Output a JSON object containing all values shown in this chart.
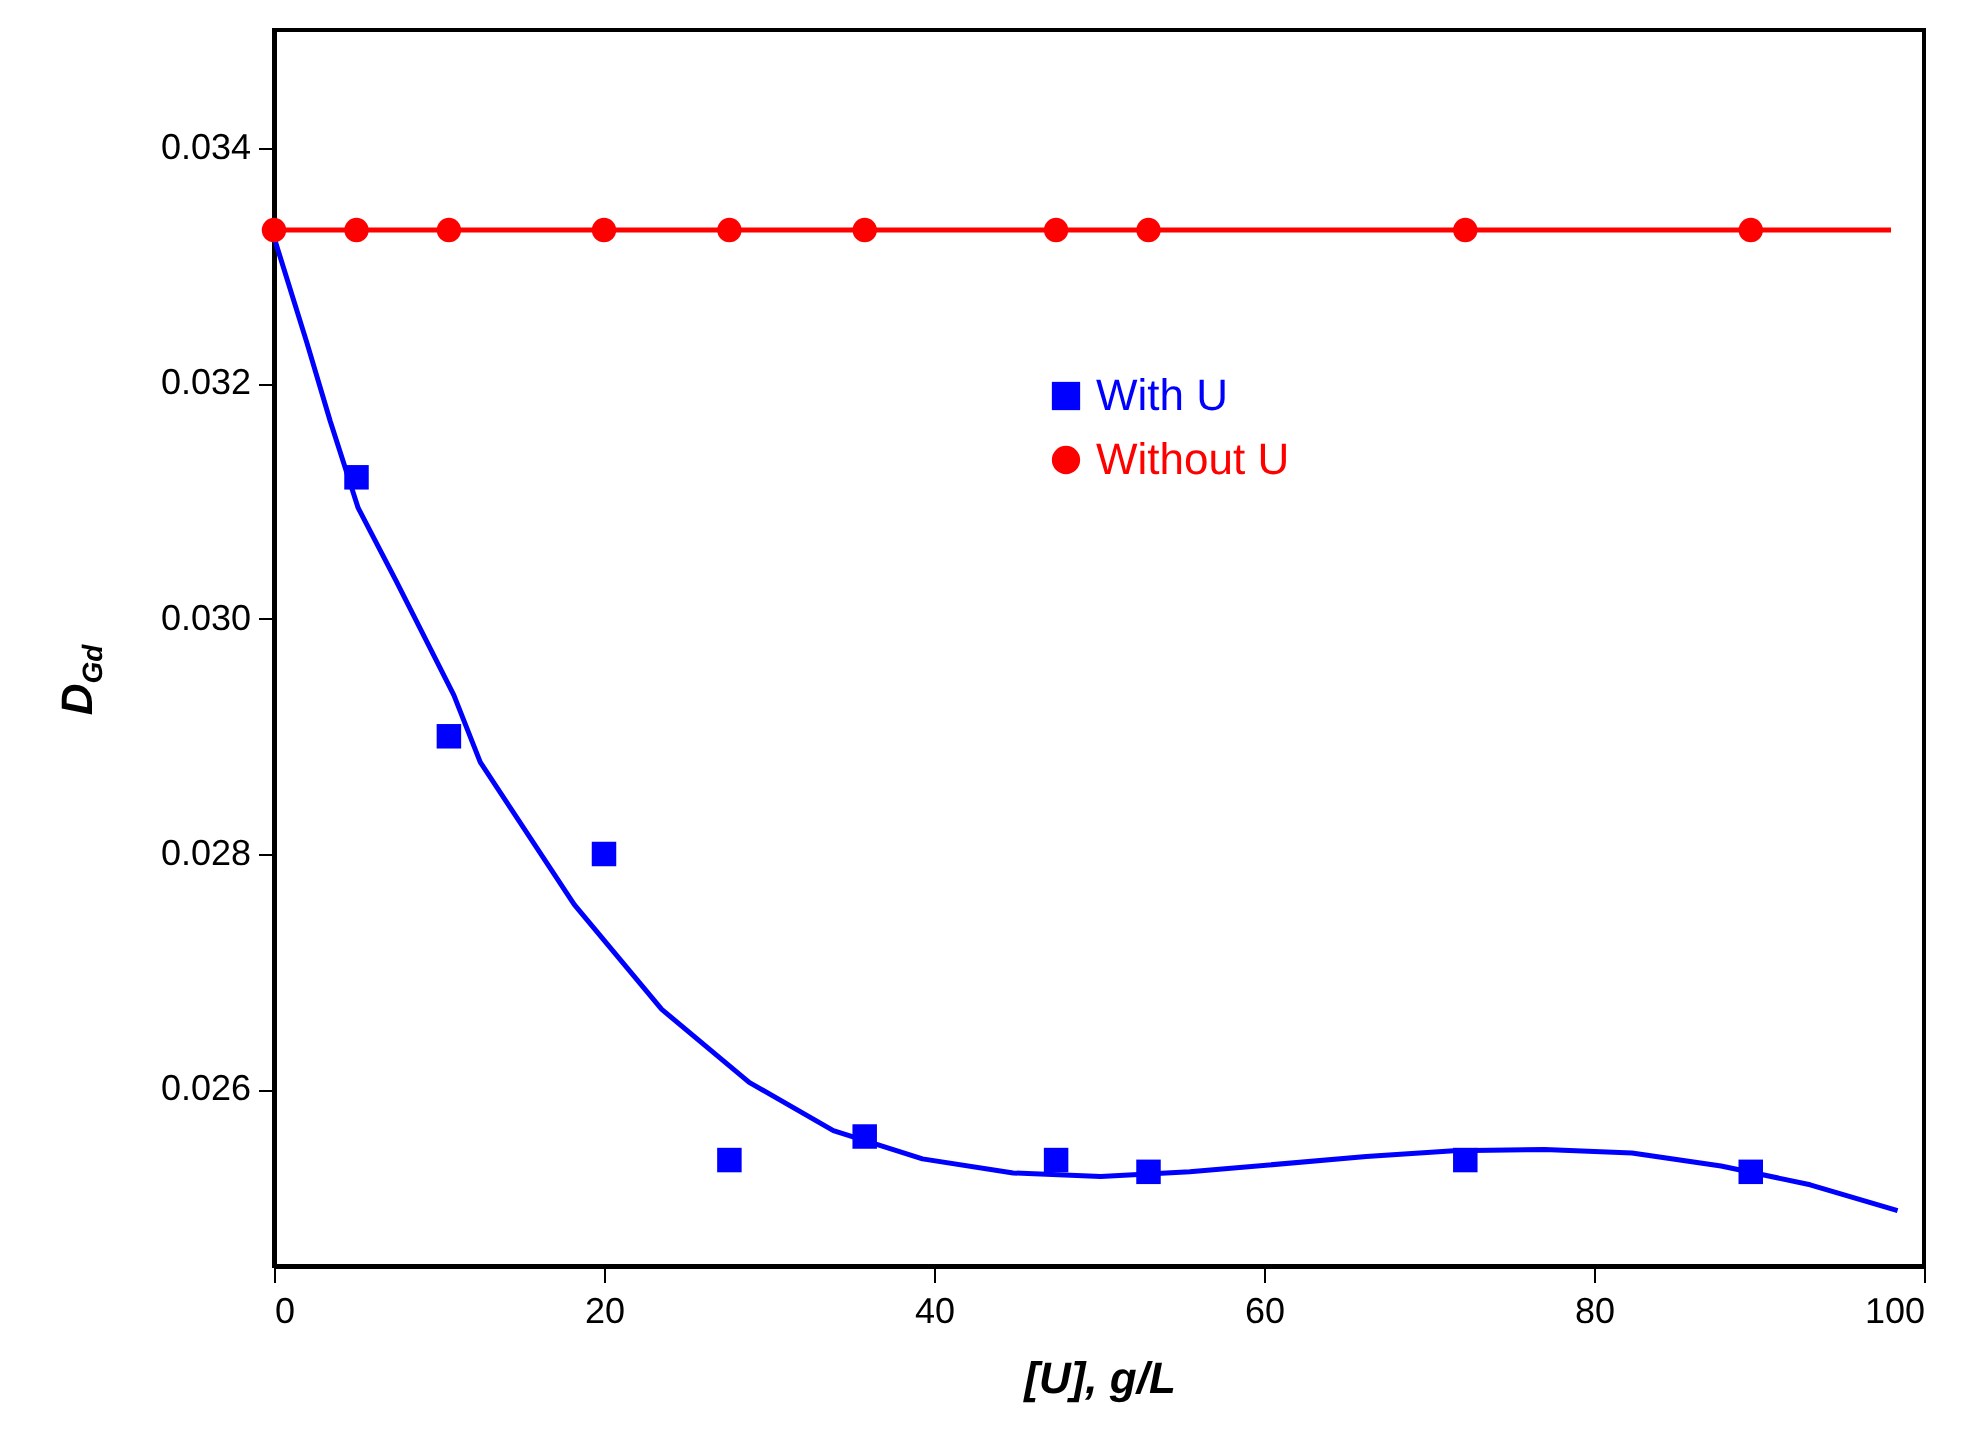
{
  "chart_data": {
    "type": "scatter",
    "xlabel": "[U], g/L",
    "ylabel": "D$_{Gd}$",
    "xlim": [
      0,
      100
    ],
    "ylim": [
      0.0245,
      0.035
    ],
    "xticks": [
      0,
      20,
      40,
      60,
      80,
      100
    ],
    "yticks": [
      {
        "value": 0.026,
        "label": "0.026"
      },
      {
        "value": 0.028,
        "label": "0.028"
      },
      {
        "value": 0.03,
        "label": "0.030"
      },
      {
        "value": 0.032,
        "label": "0.032"
      },
      {
        "value": 0.034,
        "label": "0.034"
      }
    ],
    "grid": false,
    "legend": "top right",
    "series": [
      {
        "name": "With U",
        "marker": "square",
        "color": "#0000ff",
        "x": [
          5,
          10.6,
          20,
          27.6,
          35.8,
          47.4,
          53,
          72.2,
          89.5
        ],
        "values": [
          0.0312,
          0.029,
          0.028,
          0.0254,
          0.0256,
          0.0254,
          0.0253,
          0.0254,
          0.0253
        ]
      },
      {
        "name": "Without U",
        "marker": "circle",
        "color": "#ff0000",
        "x": [
          0,
          5,
          10.6,
          20,
          27.6,
          35.8,
          47.4,
          53,
          72.2,
          89.5
        ],
        "values": [
          0.0333,
          0.0333,
          0.0333,
          0.0333,
          0.0333,
          0.0333,
          0.0333,
          0.0333,
          0.0333,
          0.0333
        ]
      },
      {
        "type": "line",
        "color": "#0000ff",
        "x": [
          0,
          2,
          3.4,
          5.1,
          7.4,
          10.9,
          12.5,
          18.2,
          23.5,
          28.8,
          33.9,
          39.3,
          44.8,
          50.1,
          55.5,
          66.2,
          71.5,
          77,
          82.3,
          87.7,
          93.1,
          98.4
        ],
        "values": [
          0.03324,
          0.03234,
          0.03168,
          0.03094,
          0.03032,
          0.02935,
          0.02878,
          0.02757,
          0.02668,
          0.02606,
          0.02565,
          0.02541,
          0.02529,
          0.02526,
          0.0253,
          0.02543,
          0.02548,
          0.02549,
          0.02546,
          0.02535,
          0.02519,
          0.02497
        ]
      },
      {
        "type": "line",
        "color": "#ff0000",
        "x": [
          0,
          98
        ],
        "values": [
          0.0333,
          0.0333
        ]
      }
    ]
  }
}
